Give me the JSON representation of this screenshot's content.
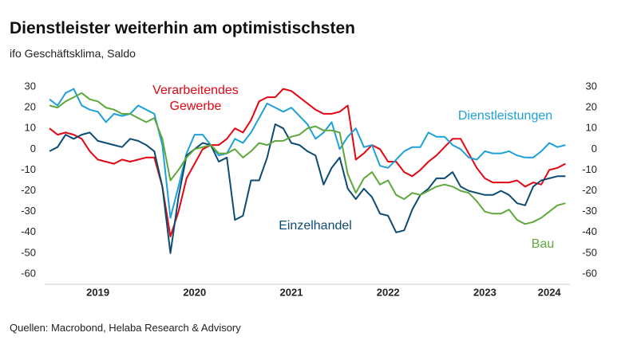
{
  "chart_data": {
    "type": "line",
    "title": "Dienstleister weiterhin am optimistischsten",
    "subtitle": "ifo Geschäftsklima, Saldo",
    "source": "Quellen: Macrobond, Helaba Research & Advisory",
    "categories": [
      null,
      null,
      null,
      null,
      null,
      null,
      "2019",
      null,
      null,
      null,
      null,
      null,
      null,
      null,
      null,
      null,
      null,
      null,
      "2020",
      null,
      null,
      null,
      null,
      null,
      null,
      null,
      null,
      null,
      null,
      null,
      "2021",
      null,
      null,
      null,
      null,
      null,
      null,
      null,
      null,
      null,
      null,
      null,
      "2022",
      null,
      null,
      null,
      null,
      null,
      null,
      null,
      null,
      null,
      null,
      null,
      "2023",
      null,
      null,
      null,
      null,
      null,
      null,
      null,
      "2024",
      null,
      null
    ],
    "ylim": [
      -60,
      30
    ],
    "yticks": [
      30,
      20,
      10,
      0,
      -10,
      -20,
      -30,
      -40,
      -50,
      -60
    ],
    "grid": false,
    "series": [
      {
        "name": "Verarbeitendes Gewerbe",
        "color": "#e30613",
        "values": [
          10,
          7,
          8,
          7,
          5,
          -1,
          -5,
          -6,
          -7,
          -5,
          -6,
          -5,
          -4,
          -4,
          -18,
          -42,
          -30,
          -14,
          -7,
          0,
          2,
          2,
          5,
          10,
          8,
          14,
          23,
          25,
          25,
          29,
          28,
          25,
          22,
          19,
          17,
          17,
          18,
          21,
          -5,
          -2,
          2,
          0,
          -6,
          -6,
          -11,
          -13,
          -10,
          -6,
          -3,
          1,
          5,
          5,
          -2,
          -9,
          -14,
          -16,
          -16,
          -16,
          -15,
          -18,
          -16,
          -17,
          -10,
          -9,
          -7
        ]
      },
      {
        "name": "Dienstleistungen",
        "color": "#1ea0d8",
        "values": [
          24,
          21,
          27,
          29,
          21,
          19,
          18,
          13,
          17,
          16,
          17,
          21,
          19,
          17,
          2,
          -33,
          -18,
          -2,
          7,
          7,
          2,
          -3,
          -2,
          5,
          3,
          8,
          15,
          22,
          20,
          18,
          20,
          16,
          12,
          5,
          8,
          13,
          0,
          6,
          10,
          1,
          2,
          -8,
          -9,
          -5,
          -1,
          1,
          1,
          8,
          6,
          6,
          2,
          0,
          -4,
          -5,
          -1,
          -2,
          -2,
          -1,
          -3,
          -4,
          -4,
          -1,
          3,
          1,
          2
        ]
      },
      {
        "name": "Einzelhandel",
        "color": "#0d4b72",
        "values": [
          -1,
          1,
          7,
          5,
          7,
          8,
          4,
          3,
          2,
          1,
          5,
          4,
          2,
          -1,
          -18,
          -50,
          -23,
          -3,
          0,
          3,
          2,
          -6,
          -4,
          -34,
          -32,
          -15,
          -15,
          -4,
          12,
          10,
          3,
          2,
          -1,
          -3,
          -17,
          -9,
          -4,
          -19,
          -24,
          -19,
          -23,
          -31,
          -32,
          -40,
          -39,
          -29,
          -22,
          -19,
          -14,
          -14,
          -11,
          -18,
          -20,
          -21,
          -22,
          -22,
          -20,
          -22,
          -26,
          -27,
          -18,
          -15,
          -14,
          -13,
          -13
        ]
      },
      {
        "name": "Bau",
        "color": "#5fa83b",
        "values": [
          21,
          20,
          23,
          25,
          27,
          24,
          23,
          20,
          19,
          17,
          17,
          15,
          13,
          15,
          5,
          -15,
          -10,
          -4,
          0,
          1,
          2,
          -2,
          -2,
          0,
          -4,
          -1,
          3,
          2,
          4,
          4,
          6,
          7,
          10,
          11,
          9,
          9,
          8,
          -12,
          -21,
          -14,
          -11,
          -17,
          -15,
          -22,
          -24,
          -21,
          -22,
          -20,
          -18,
          -17,
          -18,
          -20,
          -21,
          -25,
          -30,
          -31,
          -31,
          -29,
          -34,
          -36,
          -35,
          -33,
          -30,
          -27,
          -26
        ]
      }
    ]
  }
}
